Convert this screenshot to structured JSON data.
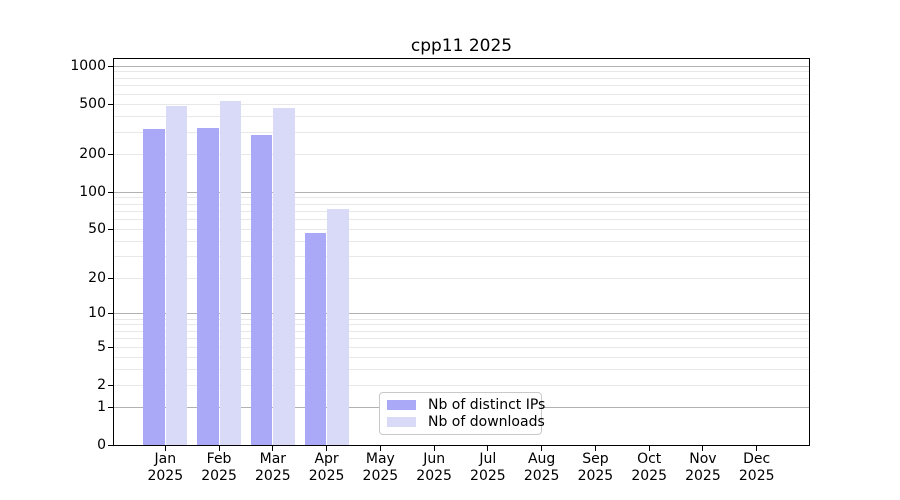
{
  "chart": {
    "title": "cpp11 2025"
  },
  "chart_data": {
    "type": "bar",
    "title": "cpp11 2025",
    "categories": [
      "Jan 2025",
      "Feb 2025",
      "Mar 2025",
      "Apr 2025",
      "May 2025",
      "Jun 2025",
      "Jul 2025",
      "Aug 2025",
      "Sep 2025",
      "Oct 2025",
      "Nov 2025",
      "Dec 2025"
    ],
    "category_line1": [
      "Jan",
      "Feb",
      "Mar",
      "Apr",
      "May",
      "Jun",
      "Jul",
      "Aug",
      "Sep",
      "Oct",
      "Nov",
      "Dec"
    ],
    "category_line2": "2025",
    "series": [
      {
        "name": "Nb of distinct IPs",
        "color": "#a9a9f7",
        "values": [
          320,
          325,
          285,
          47,
          0,
          0,
          0,
          0,
          0,
          0,
          0,
          0
        ]
      },
      {
        "name": "Nb of downloads",
        "color": "#d9d9f8",
        "values": [
          483,
          530,
          468,
          73,
          0,
          0,
          0,
          0,
          0,
          0,
          0,
          0
        ]
      }
    ],
    "yscale": "log10(value+1)",
    "ylim": [
      0,
      1160
    ],
    "ytick_labels": [
      "1000",
      "500",
      "200",
      "100",
      "50",
      "20",
      "10",
      "5",
      "2",
      "1",
      "0"
    ],
    "ytick_values": [
      1000,
      500,
      200,
      100,
      50,
      20,
      10,
      5,
      2,
      1,
      0
    ],
    "major_grid_values": [
      1000,
      100,
      10,
      1
    ],
    "minor_grid_values": [
      2,
      3,
      4,
      5,
      6,
      7,
      8,
      9,
      20,
      30,
      40,
      50,
      60,
      70,
      80,
      90,
      200,
      300,
      400,
      500,
      600,
      700,
      800,
      900
    ],
    "grid": true,
    "legend_position": "inside-bottom-center"
  },
  "legend": {
    "items": [
      {
        "label": "Nb of distinct IPs",
        "color": "#a9a9f7"
      },
      {
        "label": "Nb of downloads",
        "color": "#d9d9f8"
      }
    ]
  },
  "colors": {
    "background": "#ffffff",
    "axis": "#000000",
    "grid_major": "#b2b2b2",
    "grid_minor": "#e8e8e8",
    "legend_border": "#c9c9c9",
    "bar_distinct_ips": "#a9a9f7",
    "bar_downloads": "#d9d9f8"
  }
}
